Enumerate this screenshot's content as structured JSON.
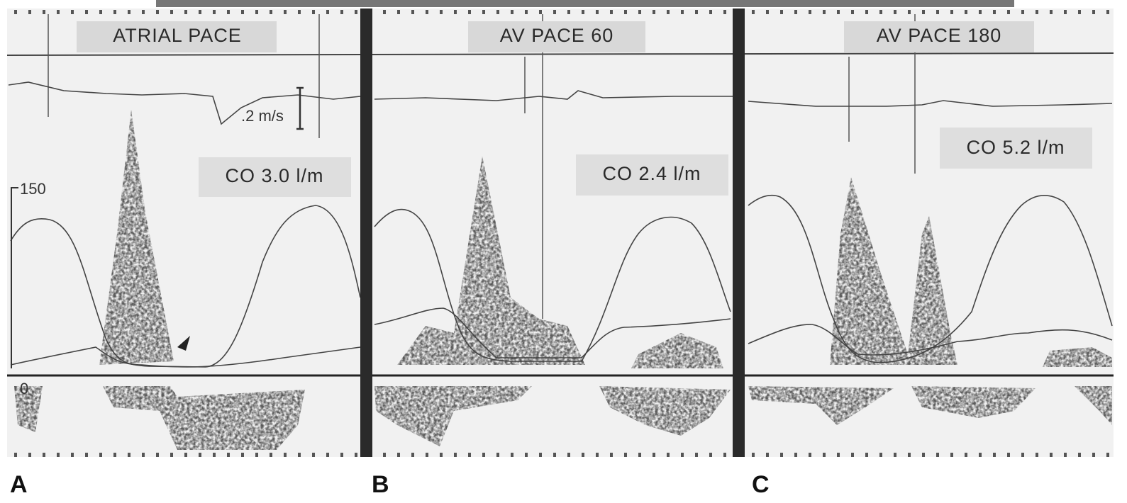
{
  "scale": {
    "velocity": ".2 m/s",
    "pressure_top": "150",
    "pressure_bottom": "0"
  },
  "panels": [
    {
      "letter": "A",
      "title": "ATRIAL PACE",
      "output": "CO 3.0 l/m"
    },
    {
      "letter": "B",
      "title": "AV PACE 60",
      "output": "CO 2.4 l/m"
    },
    {
      "letter": "C",
      "title": "AV PACE 180",
      "output": "CO 5.2 l/m"
    }
  ]
}
